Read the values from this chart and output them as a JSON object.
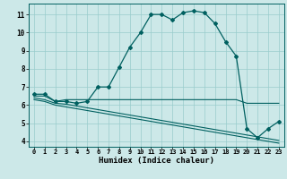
{
  "xlabel": "Humidex (Indice chaleur)",
  "x_values": [
    0,
    1,
    2,
    3,
    4,
    5,
    6,
    7,
    8,
    9,
    10,
    11,
    12,
    13,
    14,
    15,
    16,
    17,
    18,
    19,
    20,
    21,
    22,
    23
  ],
  "main_line": [
    6.6,
    6.6,
    6.2,
    6.2,
    6.1,
    6.2,
    7.0,
    7.0,
    8.1,
    9.2,
    10.0,
    11.0,
    11.0,
    10.7,
    11.1,
    11.2,
    11.1,
    10.5,
    9.5,
    8.7,
    4.7,
    4.2,
    4.7,
    5.1
  ],
  "flat_line1": [
    6.5,
    6.5,
    6.2,
    6.3,
    6.3,
    6.3,
    6.3,
    6.3,
    6.3,
    6.3,
    6.3,
    6.3,
    6.3,
    6.3,
    6.3,
    6.3,
    6.3,
    6.3,
    6.3,
    6.3,
    6.1,
    6.1,
    6.1,
    6.1
  ],
  "diag_line1": [
    6.4,
    6.3,
    6.1,
    6.05,
    5.95,
    5.85,
    5.75,
    5.65,
    5.55,
    5.45,
    5.35,
    5.25,
    5.15,
    5.05,
    4.95,
    4.85,
    4.75,
    4.65,
    4.55,
    4.45,
    4.35,
    4.25,
    4.15,
    4.05
  ],
  "diag_line2": [
    6.3,
    6.2,
    6.0,
    5.9,
    5.8,
    5.7,
    5.6,
    5.5,
    5.4,
    5.3,
    5.2,
    5.1,
    5.0,
    4.9,
    4.8,
    4.7,
    4.6,
    4.5,
    4.4,
    4.3,
    4.2,
    4.1,
    4.0,
    3.9
  ],
  "line_color": "#006060",
  "bg_color": "#cce8e8",
  "grid_color": "#99cccc",
  "ylim": [
    3.7,
    11.6
  ],
  "xlim": [
    -0.5,
    23.5
  ],
  "yticks": [
    4,
    5,
    6,
    7,
    8,
    9,
    10,
    11
  ],
  "xticks": [
    0,
    1,
    2,
    3,
    4,
    5,
    6,
    7,
    8,
    9,
    10,
    11,
    12,
    13,
    14,
    15,
    16,
    17,
    18,
    19,
    20,
    21,
    22,
    23
  ]
}
